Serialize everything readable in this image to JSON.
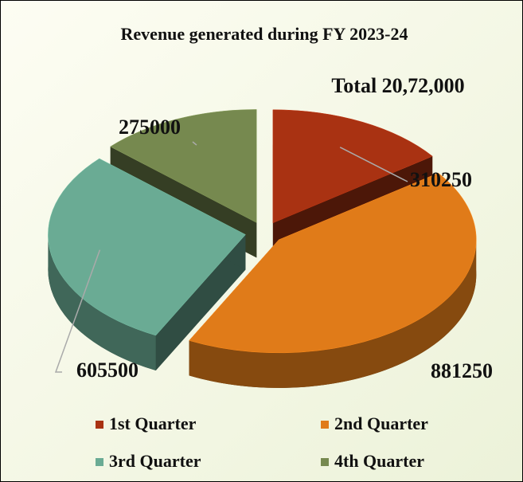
{
  "chart_data": {
    "type": "pie3d",
    "title": "Revenue generated during FY 2023-24",
    "annotation": "Total 20,72,000",
    "categories": [
      "1st Quarter",
      "2nd Quarter",
      "3rd Quarter",
      "4th Quarter"
    ],
    "values": [
      310250,
      881250,
      605500,
      275000
    ],
    "colors": [
      "#a93212",
      "#e07b19",
      "#6aab94",
      "#76894f"
    ],
    "legend": "bottom"
  }
}
